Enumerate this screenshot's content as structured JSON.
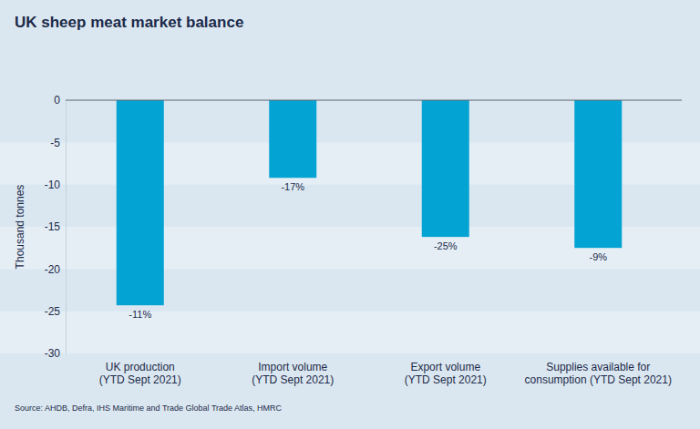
{
  "chart_data": {
    "type": "bar",
    "title": "UK sheep meat market balance",
    "y_label": "Thousand tonnes",
    "categories": [
      "UK production\n(YTD Sept 2021)",
      "Import volume\n(YTD Sept 2021)",
      "Export volume\n(YTD Sept 2021)",
      "Supplies available for\nconsumption (YTD Sept 2021)"
    ],
    "values": [
      -24.3,
      -9.2,
      -16.2,
      -17.5
    ],
    "annotations": [
      "-11%",
      "-17%",
      "-25%",
      "-9%"
    ],
    "color": "#03a4d3",
    "ylim": [
      -30,
      0
    ],
    "yticks": [
      -30,
      -25,
      -20,
      -15,
      -10,
      -5,
      0
    ],
    "grid": true,
    "source": "Source: AHDB, Defra, IHS Maritime and Trade Global Trade Atlas, HMRC"
  }
}
